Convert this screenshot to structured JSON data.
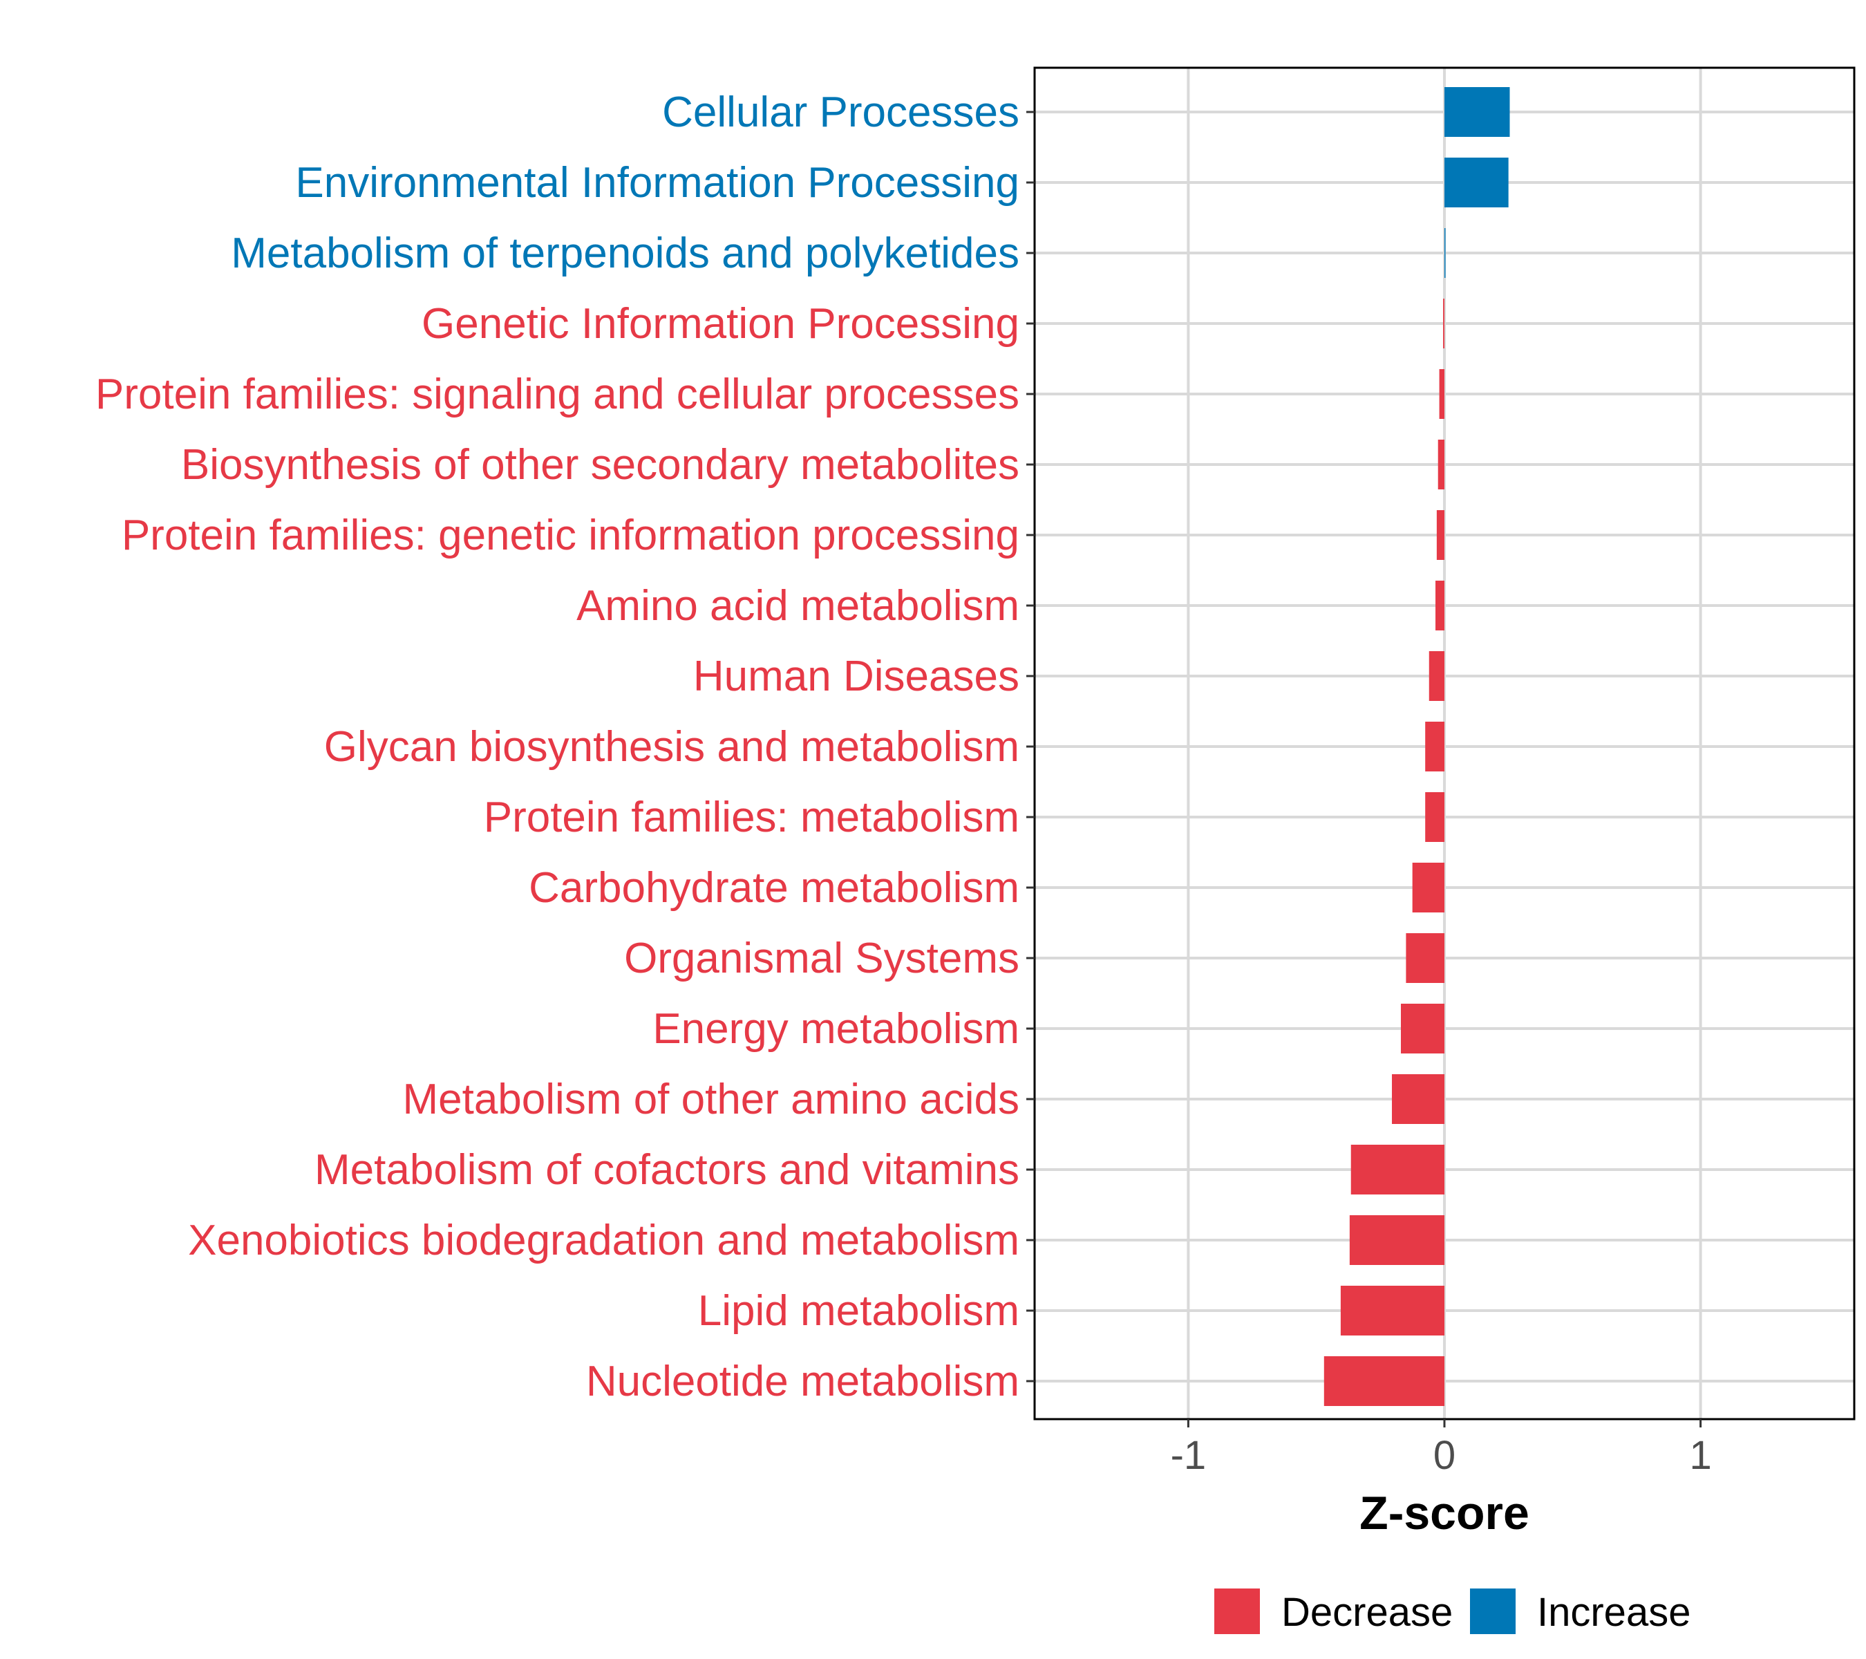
{
  "colors": {
    "decrease": "#e63946",
    "increase": "#0077b6",
    "grid": "#d9d9d9",
    "panel_border": "#000000",
    "tick_text": "#4d4d4d"
  },
  "chart_data": {
    "type": "bar",
    "orientation": "horizontal",
    "xlabel": "Z-score",
    "ylabel": "",
    "xlim": [
      -1.6,
      1.6
    ],
    "x_ticks": [
      -1,
      0,
      1
    ],
    "x_tick_labels": [
      "-1",
      "0",
      "1"
    ],
    "grid": true,
    "categories": [
      "Cellular Processes",
      "Environmental Information Processing",
      "Metabolism of terpenoids and polyketides",
      "Genetic Information Processing",
      "Protein families: signaling and cellular processes",
      "Biosynthesis of other secondary metabolites",
      "Protein families: genetic information processing",
      "Amino acid metabolism",
      "Human Diseases",
      "Glycan biosynthesis and metabolism",
      "Protein families: metabolism",
      "Carbohydrate metabolism",
      "Organismal Systems",
      "Energy metabolism",
      "Metabolism of other amino acids",
      "Metabolism of cofactors and vitamins",
      "Xenobiotics biodegradation and metabolism",
      "Lipid metabolism",
      "Nucleotide metabolism"
    ],
    "values": [
      0.255,
      0.25,
      0.004,
      -0.005,
      -0.02,
      -0.025,
      -0.03,
      -0.035,
      -0.06,
      -0.075,
      -0.075,
      -0.125,
      -0.15,
      -0.17,
      -0.205,
      -0.365,
      -0.37,
      -0.405,
      -0.47
    ],
    "direction": [
      "Increase",
      "Increase",
      "Increase",
      "Decrease",
      "Decrease",
      "Decrease",
      "Decrease",
      "Decrease",
      "Decrease",
      "Decrease",
      "Decrease",
      "Decrease",
      "Decrease",
      "Decrease",
      "Decrease",
      "Decrease",
      "Decrease",
      "Decrease",
      "Decrease"
    ],
    "legend": {
      "placement": "bottom",
      "entries": [
        {
          "label": "Decrease",
          "color": "#e63946"
        },
        {
          "label": "Increase",
          "color": "#0077b6"
        }
      ]
    }
  }
}
